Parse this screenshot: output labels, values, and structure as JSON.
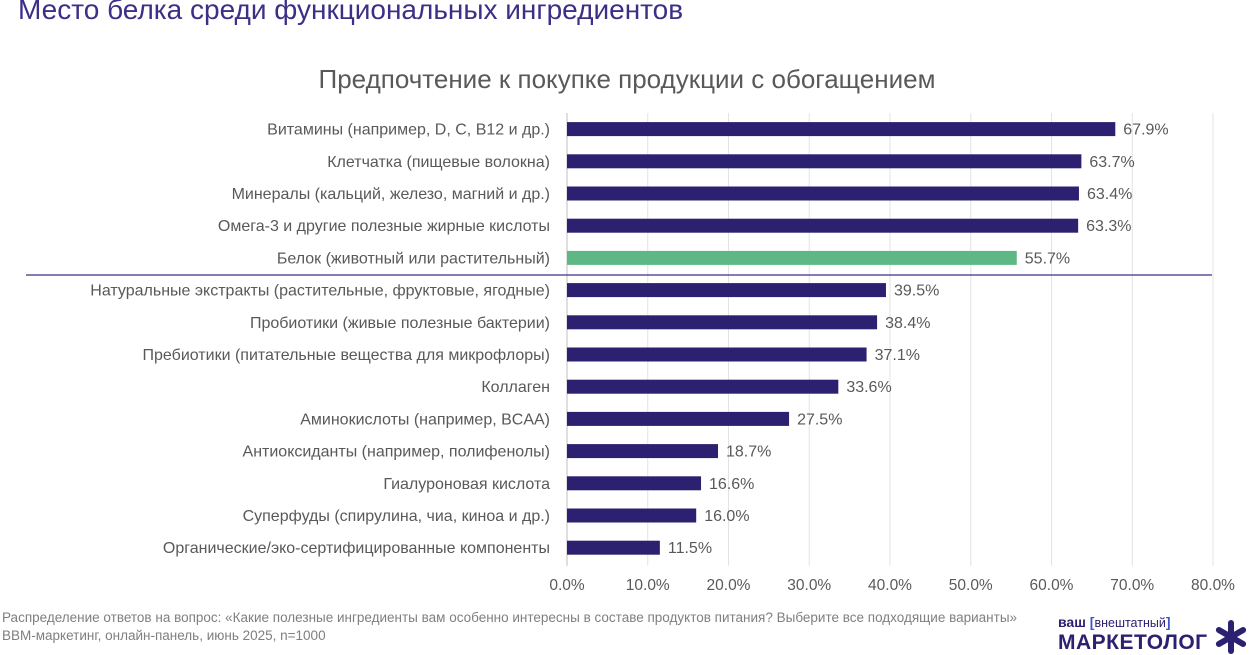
{
  "page": {
    "title": "Место белка среди функциональных ингредиентов",
    "footnote": "Распределение ответов на вопрос: «Какие полезные ингредиенты вам особенно интересны в составе продуктов питания? Выберите все подходящие варианты» BBM-маркетинг, онлайн-панель, июнь 2025, n=1000"
  },
  "logo": {
    "line1_word": "ваш",
    "line1_bracket_open": "[",
    "line1_sub": "внештатный",
    "line1_bracket_close": "]",
    "line2": "МАРКЕТОЛОГ",
    "star_icon": "asterisk-icon"
  },
  "colors": {
    "bar": "#2b2170",
    "highlight": "#5db885",
    "label": "#595959",
    "axis": "#bfbfbf",
    "divider": "#3b2f86"
  },
  "chart_data": {
    "type": "bar",
    "orientation": "horizontal",
    "title": "Предпочтение к покупке продукции с обогащением",
    "xlabel": "",
    "ylabel": "",
    "xlim": [
      0,
      80
    ],
    "grid": true,
    "legend": "none",
    "x_ticks": [
      "0.0%",
      "10.0%",
      "20.0%",
      "30.0%",
      "40.0%",
      "50.0%",
      "60.0%",
      "70.0%",
      "80.0%"
    ],
    "categories": [
      "Витамины (например, D, C, B12 и др.)",
      "Клетчатка (пищевые волокна)",
      "Минералы (кальций, железо, магний и др.)",
      "Омега-3 и другие полезные жирные кислоты",
      "Белок (животный или растительный)",
      "Натуральные экстракты (растительные, фруктовые, ягодные)",
      "Пробиотики (живые полезные бактерии)",
      "Пребиотики (питательные вещества для микрофлоры)",
      "Коллаген",
      "Аминокислоты (например, BCAA)",
      "Антиоксиданты (например, полифенолы)",
      "Гиалуроновая кислота",
      "Суперфуды (спирулина, чиа, киноа и др.)",
      "Органические/эко-сертифицированные компоненты"
    ],
    "values": [
      67.9,
      63.7,
      63.4,
      63.3,
      55.7,
      39.5,
      38.4,
      37.1,
      33.6,
      27.5,
      18.7,
      16.6,
      16.0,
      11.5
    ],
    "data_labels": [
      "67.9%",
      "63.7%",
      "63.4%",
      "63.3%",
      "55.7%",
      "39.5%",
      "38.4%",
      "37.1%",
      "33.6%",
      "27.5%",
      "18.7%",
      "16.6%",
      "16.0%",
      "11.5%"
    ],
    "highlight_category": "Белок (животный или растительный)",
    "divider_after": "Белок (животный или растительный)"
  }
}
